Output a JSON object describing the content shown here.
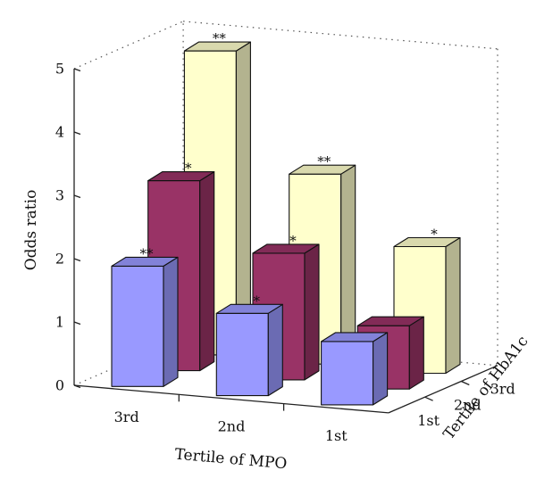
{
  "chart_data": {
    "type": "bar",
    "variant": "3d-grouped",
    "title": "",
    "ylabel": "Odds ratio",
    "xlabel": "Tertile of MPO",
    "zlabel": "Tertile of HbA1c",
    "ylim": [
      0,
      5
    ],
    "yticks": [
      "0",
      "1",
      "2",
      "3",
      "4",
      "5"
    ],
    "x_categories": [
      "3rd",
      "2nd",
      "1st"
    ],
    "z_categories": [
      "1st",
      "2nd",
      "3rd"
    ],
    "colors": {
      "1st": "#9999ff",
      "2nd": "#993366",
      "3rd": "#ffffcc"
    },
    "grid": false,
    "legend": "none",
    "series": [
      {
        "values": [
          1.9,
          1.3,
          1.0
        ],
        "significance": [
          "**",
          "*",
          ""
        ]
      },
      {
        "values": [
          3.0,
          2.0,
          1.0
        ],
        "significance": [
          "*",
          "*",
          ""
        ]
      },
      {
        "values": [
          4.8,
          3.0,
          2.0
        ],
        "significance": [
          "**",
          "**",
          "*"
        ]
      }
    ]
  }
}
